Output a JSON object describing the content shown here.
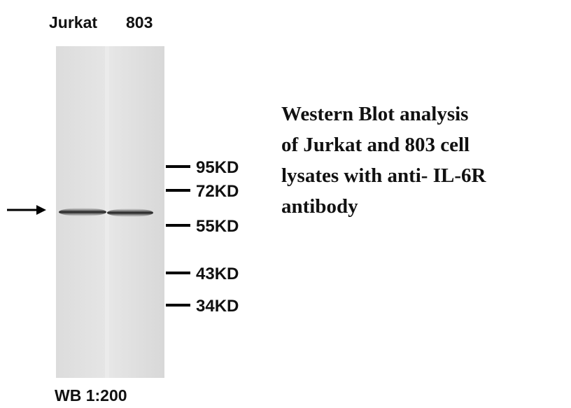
{
  "lanes": [
    "Jurkat",
    "803"
  ],
  "markers": [
    "95KD",
    "72KD",
    "55KD",
    "43KD",
    "34KD"
  ],
  "description": [
    "Western Blot analysis",
    "of Jurkat and 803 cell",
    "lysates with anti- IL-6R",
    "antibody"
  ],
  "footer": "WB 1:200"
}
